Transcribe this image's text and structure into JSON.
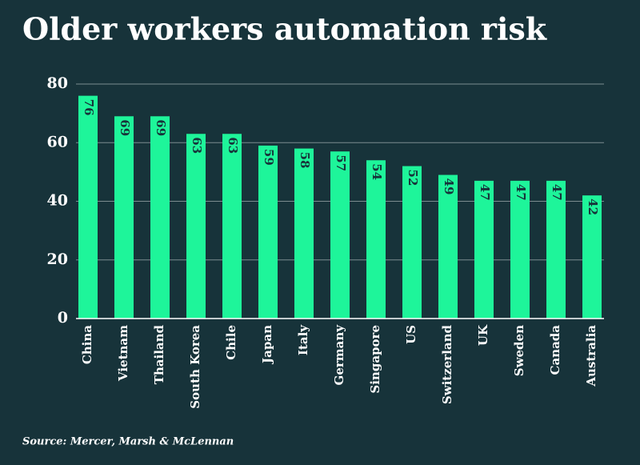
{
  "chart_data": {
    "type": "bar",
    "title": "Older workers automation risk",
    "categories": [
      "China",
      "Vietnam",
      "Thailand",
      "South Korea",
      "Chile",
      "Japan",
      "Italy",
      "Germany",
      "Singapore",
      "US",
      "Switzerland",
      "UK",
      "Sweden",
      "Canada",
      "Australia"
    ],
    "values": [
      76,
      69,
      69,
      63,
      63,
      59,
      58,
      57,
      54,
      52,
      49,
      47,
      47,
      47,
      42
    ],
    "color": "#1ef59a",
    "ylim": [
      0,
      80
    ],
    "yticks": [
      0,
      20,
      40,
      60,
      80
    ],
    "grid": true,
    "source": "Source: Mercer, Marsh & McLennan"
  }
}
